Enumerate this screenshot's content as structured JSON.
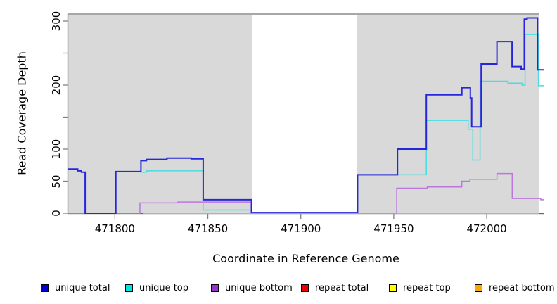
{
  "figure": {
    "background": "#ffffff",
    "axis_color": "#222222",
    "tick_color": "#808080",
    "top_border_color": "#8a8a8a",
    "shade_color": "#d9d9d9"
  },
  "chart_data": {
    "type": "line",
    "subtype": "step",
    "title": "",
    "xlabel": "Coordinate in Reference Genome",
    "ylabel": "Read Coverage Depth",
    "xlim": [
      471774.9,
      472030.6
    ],
    "ylim": [
      0,
      311
    ],
    "grid": false,
    "legend_position": "bottom",
    "x_ticks": [
      {
        "value": 471800,
        "label": "471800"
      },
      {
        "value": 471850,
        "label": "471850"
      },
      {
        "value": 471900,
        "label": "471900"
      },
      {
        "value": 471950,
        "label": "471950"
      },
      {
        "value": 472000,
        "label": "472000"
      }
    ],
    "y_ticks": [
      {
        "value": 0,
        "label": "0"
      },
      {
        "value": 50,
        "label": "50"
      },
      {
        "value": 100,
        "label": "100"
      },
      {
        "value": 150,
        "label": ""
      },
      {
        "value": 200,
        "label": "200"
      },
      {
        "value": 250,
        "label": ""
      },
      {
        "value": 300,
        "label": "300"
      }
    ],
    "shaded_regions": [
      {
        "x0": 471774.9,
        "x1": 471874,
        "note": "repeat-masked block left"
      },
      {
        "x0": 471930.3,
        "x1": 472028,
        "note": "repeat-masked block right"
      }
    ],
    "series": [
      {
        "name": "repeat top",
        "color": "#FFFF00",
        "line_width": 1.5,
        "step_points": [
          [
            471774.9,
            0
          ],
          [
            472030.6,
            0
          ]
        ]
      },
      {
        "name": "repeat total",
        "color": "#E32222",
        "line_width": 1.5,
        "step_points": [
          [
            471774.9,
            0
          ],
          [
            472030.6,
            0
          ]
        ]
      },
      {
        "name": "repeat bottom",
        "color": "#FFA428",
        "line_width": 2,
        "step_points": [
          [
            471815,
            0
          ],
          [
            472028,
            0
          ]
        ]
      },
      {
        "name": "unique bottom",
        "color": "#BB77DD",
        "line_width": 1.5,
        "step_points": [
          [
            471774.9,
            0
          ],
          [
            471813.5,
            16
          ],
          [
            471834,
            17.5
          ],
          [
            471873.3,
            0.3
          ],
          [
            471951.6,
            39
          ],
          [
            471968,
            41
          ],
          [
            471986.6,
            50
          ],
          [
            471991,
            53
          ],
          [
            472005.5,
            62
          ],
          [
            472013.7,
            23
          ],
          [
            472029,
            21
          ],
          [
            472030.6,
            21
          ]
        ]
      },
      {
        "name": "unique top",
        "color": "#45DDE2",
        "line_width": 1.5,
        "step_points": [
          [
            471774.9,
            69
          ],
          [
            471780,
            66
          ],
          [
            471782,
            64
          ],
          [
            471784,
            0
          ],
          [
            471800.5,
            65
          ],
          [
            471814,
            64
          ],
          [
            471817,
            66
          ],
          [
            471847.5,
            5
          ],
          [
            471873.5,
            0
          ],
          [
            471930.5,
            60
          ],
          [
            471967.5,
            145
          ],
          [
            471990,
            131
          ],
          [
            471992.5,
            83
          ],
          [
            471996.4,
            206
          ],
          [
            472011.4,
            203
          ],
          [
            472019,
            200
          ],
          [
            472020.6,
            279
          ],
          [
            472027.8,
            199
          ],
          [
            472030.6,
            199
          ]
        ]
      },
      {
        "name": "unique total",
        "color": "#2626DC",
        "line_width": 2,
        "step_points": [
          [
            471774.9,
            69
          ],
          [
            471780,
            66
          ],
          [
            471782,
            64
          ],
          [
            471784,
            0
          ],
          [
            471800.5,
            65
          ],
          [
            471814,
            82
          ],
          [
            471817,
            84
          ],
          [
            471828,
            86
          ],
          [
            471841,
            85
          ],
          [
            471847.5,
            21
          ],
          [
            471873.5,
            1
          ],
          [
            471930.5,
            60
          ],
          [
            471952,
            100
          ],
          [
            471967.5,
            185
          ],
          [
            471986.6,
            196
          ],
          [
            471991.2,
            180
          ],
          [
            471991.9,
            135
          ],
          [
            471997,
            233
          ],
          [
            472005.5,
            268
          ],
          [
            472013.6,
            229
          ],
          [
            472018.5,
            225
          ],
          [
            472020.2,
            303
          ],
          [
            472021.7,
            305
          ],
          [
            472027.3,
            224
          ],
          [
            472030.6,
            224
          ]
        ]
      }
    ],
    "legend": [
      {
        "label": "unique total",
        "color": "#0000CC"
      },
      {
        "label": "unique top",
        "color": "#00E5E5"
      },
      {
        "label": "unique bottom",
        "color": "#9932CC"
      },
      {
        "label": "repeat total",
        "color": "#EE0000"
      },
      {
        "label": "repeat top",
        "color": "#FFFF00"
      },
      {
        "label": "repeat bottom",
        "color": "#FFA500"
      }
    ]
  }
}
